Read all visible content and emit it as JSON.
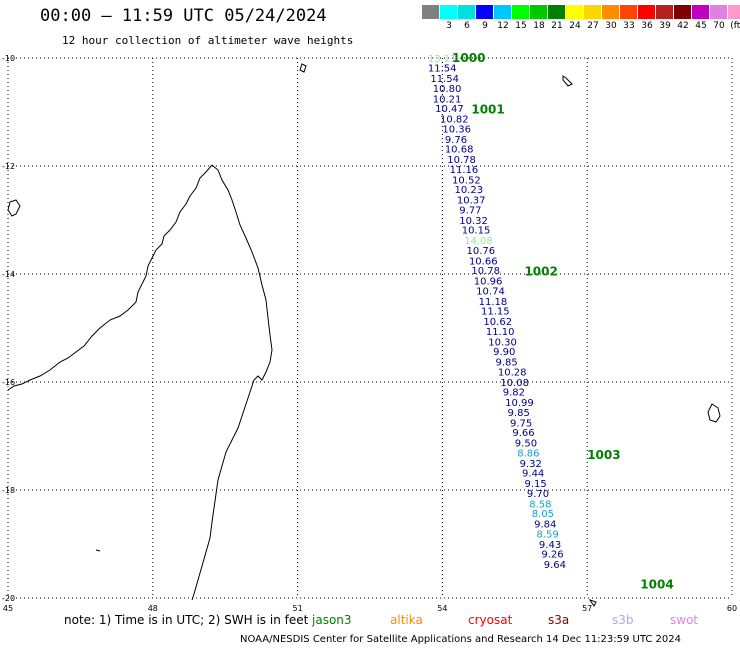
{
  "header": {
    "title": "00:00 — 11:59 UTC 05/24/2024",
    "subtitle": "12 hour collection of altimeter wave heights"
  },
  "legend": {
    "colors": [
      "#808080",
      "#00ffff",
      "#00e0e0",
      "#0000ff",
      "#00c8ff",
      "#00ff00",
      "#00c800",
      "#008000",
      "#ffff00",
      "#ffd700",
      "#ff8c00",
      "#ff4500",
      "#ff0000",
      "#b22222",
      "#800000",
      "#c000c0",
      "#e080e0",
      "#ff99cc",
      "#000000"
    ],
    "labels": [
      "",
      "3",
      "6",
      "9",
      "12",
      "15",
      "18",
      "21",
      "24",
      "27",
      "30",
      "33",
      "36",
      "39",
      "42",
      "45",
      "70",
      "(ft)",
      ""
    ]
  },
  "map": {
    "lat_labels": [
      "-10",
      "-12",
      "-14",
      "-16",
      "-18",
      "-20"
    ],
    "lon_labels": [
      "45",
      "48",
      "51",
      "54",
      "57",
      "60"
    ],
    "lat_range": [
      -20,
      -10
    ],
    "lon_range": [
      45,
      60
    ],
    "grid": "dotted"
  },
  "pass_labels": [
    {
      "label": "1000",
      "lat": -10.0,
      "lon": 54.2
    },
    {
      "label": "1001",
      "lat": -10.95,
      "lon": 54.6
    },
    {
      "label": "1002",
      "lat": -13.95,
      "lon": 55.7
    },
    {
      "label": "1003",
      "lat": -17.35,
      "lon": 57.0
    },
    {
      "label": "1004",
      "lat": -19.75,
      "lon": 58.1
    }
  ],
  "observations": [
    {
      "v": "13.11",
      "lat": -10.0,
      "lon": 53.7,
      "c": "#90ee90"
    },
    {
      "v": "11.54",
      "lat": -10.18,
      "lon": 53.7,
      "c": "#00008b"
    },
    {
      "v": "11.54",
      "lat": -10.37,
      "lon": 53.75,
      "c": "#00008b"
    },
    {
      "v": "10.80",
      "lat": -10.56,
      "lon": 53.8,
      "c": "#00008b"
    },
    {
      "v": "10.21",
      "lat": -10.75,
      "lon": 53.8,
      "c": "#00008b"
    },
    {
      "v": "10.47",
      "lat": -10.93,
      "lon": 53.85,
      "c": "#00008b"
    },
    {
      "v": "10.82",
      "lat": -11.12,
      "lon": 53.95,
      "c": "#00008b"
    },
    {
      "v": "10.36",
      "lat": -11.31,
      "lon": 54.0,
      "c": "#00008b"
    },
    {
      "v": "9.76",
      "lat": -11.5,
      "lon": 54.05,
      "c": "#00008b"
    },
    {
      "v": "10.68",
      "lat": -11.68,
      "lon": 54.05,
      "c": "#00008b"
    },
    {
      "v": "10.78",
      "lat": -11.87,
      "lon": 54.1,
      "c": "#00008b"
    },
    {
      "v": "11.16",
      "lat": -12.06,
      "lon": 54.15,
      "c": "#00008b"
    },
    {
      "v": "10.52",
      "lat": -12.25,
      "lon": 54.2,
      "c": "#00008b"
    },
    {
      "v": "10.23",
      "lat": -12.43,
      "lon": 54.25,
      "c": "#00008b"
    },
    {
      "v": "10.37",
      "lat": -12.62,
      "lon": 54.3,
      "c": "#00008b"
    },
    {
      "v": "9.77",
      "lat": -12.81,
      "lon": 54.35,
      "c": "#00008b"
    },
    {
      "v": "10.32",
      "lat": -13.0,
      "lon": 54.35,
      "c": "#00008b"
    },
    {
      "v": "10.15",
      "lat": -13.18,
      "lon": 54.4,
      "c": "#00008b"
    },
    {
      "v": "14.08",
      "lat": -13.37,
      "lon": 54.45,
      "c": "#90ee90"
    },
    {
      "v": "10.76",
      "lat": -13.56,
      "lon": 54.5,
      "c": "#00008b"
    },
    {
      "v": "10.66",
      "lat": -13.75,
      "lon": 54.55,
      "c": "#00008b"
    },
    {
      "v": "10.78",
      "lat": -13.93,
      "lon": 54.6,
      "c": "#00008b"
    },
    {
      "v": "10.96",
      "lat": -14.12,
      "lon": 54.65,
      "c": "#00008b"
    },
    {
      "v": "10.74",
      "lat": -14.31,
      "lon": 54.7,
      "c": "#00008b"
    },
    {
      "v": "11.18",
      "lat": -14.5,
      "lon": 54.75,
      "c": "#00008b"
    },
    {
      "v": "11.15",
      "lat": -14.68,
      "lon": 54.8,
      "c": "#00008b"
    },
    {
      "v": "10.62",
      "lat": -14.87,
      "lon": 54.85,
      "c": "#00008b"
    },
    {
      "v": "11.10",
      "lat": -15.06,
      "lon": 54.9,
      "c": "#00008b"
    },
    {
      "v": "10.30",
      "lat": -15.25,
      "lon": 54.95,
      "c": "#00008b"
    },
    {
      "v": "9.90",
      "lat": -15.43,
      "lon": 55.05,
      "c": "#00008b"
    },
    {
      "v": "9.85",
      "lat": -15.62,
      "lon": 55.1,
      "c": "#00008b"
    },
    {
      "v": "10.28",
      "lat": -15.81,
      "lon": 55.15,
      "c": "#00008b"
    },
    {
      "v": "10.08",
      "lat": -16.0,
      "lon": 55.2,
      "c": "#00008b"
    },
    {
      "v": "9.82",
      "lat": -16.18,
      "lon": 55.25,
      "c": "#00008b"
    },
    {
      "v": "10.99",
      "lat": -16.37,
      "lon": 55.3,
      "c": "#00008b"
    },
    {
      "v": "9.85",
      "lat": -16.56,
      "lon": 55.35,
      "c": "#00008b"
    },
    {
      "v": "9.75",
      "lat": -16.75,
      "lon": 55.4,
      "c": "#00008b"
    },
    {
      "v": "9.66",
      "lat": -16.93,
      "lon": 55.45,
      "c": "#00008b"
    },
    {
      "v": "9.50",
      "lat": -17.12,
      "lon": 55.5,
      "c": "#00008b"
    },
    {
      "v": "8.86",
      "lat": -17.31,
      "lon": 55.55,
      "c": "#1ca0d0"
    },
    {
      "v": "9.32",
      "lat": -17.5,
      "lon": 55.6,
      "c": "#00008b"
    },
    {
      "v": "9.44",
      "lat": -17.68,
      "lon": 55.65,
      "c": "#00008b"
    },
    {
      "v": "9.15",
      "lat": -17.87,
      "lon": 55.7,
      "c": "#00008b"
    },
    {
      "v": "9.70",
      "lat": -18.06,
      "lon": 55.75,
      "c": "#00008b"
    },
    {
      "v": "8.58",
      "lat": -18.25,
      "lon": 55.8,
      "c": "#1ca0d0"
    },
    {
      "v": "8.05",
      "lat": -18.43,
      "lon": 55.85,
      "c": "#1ca0d0"
    },
    {
      "v": "9.84",
      "lat": -18.62,
      "lon": 55.9,
      "c": "#00008b"
    },
    {
      "v": "8.59",
      "lat": -18.81,
      "lon": 55.95,
      "c": "#1ca0d0"
    },
    {
      "v": "9.43",
      "lat": -19.0,
      "lon": 56.0,
      "c": "#00008b"
    },
    {
      "v": "9.26",
      "lat": -19.18,
      "lon": 56.05,
      "c": "#00008b"
    },
    {
      "v": "9.64",
      "lat": -19.37,
      "lon": 56.1,
      "c": "#00008b"
    }
  ],
  "footer": {
    "note": "note: 1) Time is in UTC; 2) SWH is in feet",
    "satellites": [
      {
        "name": "jason3",
        "color": "#008000"
      },
      {
        "name": "altika",
        "color": "#ff8c00"
      },
      {
        "name": "cryosat",
        "color": "#ff0000"
      },
      {
        "name": "s3a",
        "color": "#8b0000"
      },
      {
        "name": "s3b",
        "color": "#b8a4e8"
      },
      {
        "name": "swot",
        "color": "#e880e8"
      }
    ],
    "credit": "NOAA/NESDIS Center for Satellite Applications and Research    14 Dec 11:23:59 UTC 2024"
  }
}
